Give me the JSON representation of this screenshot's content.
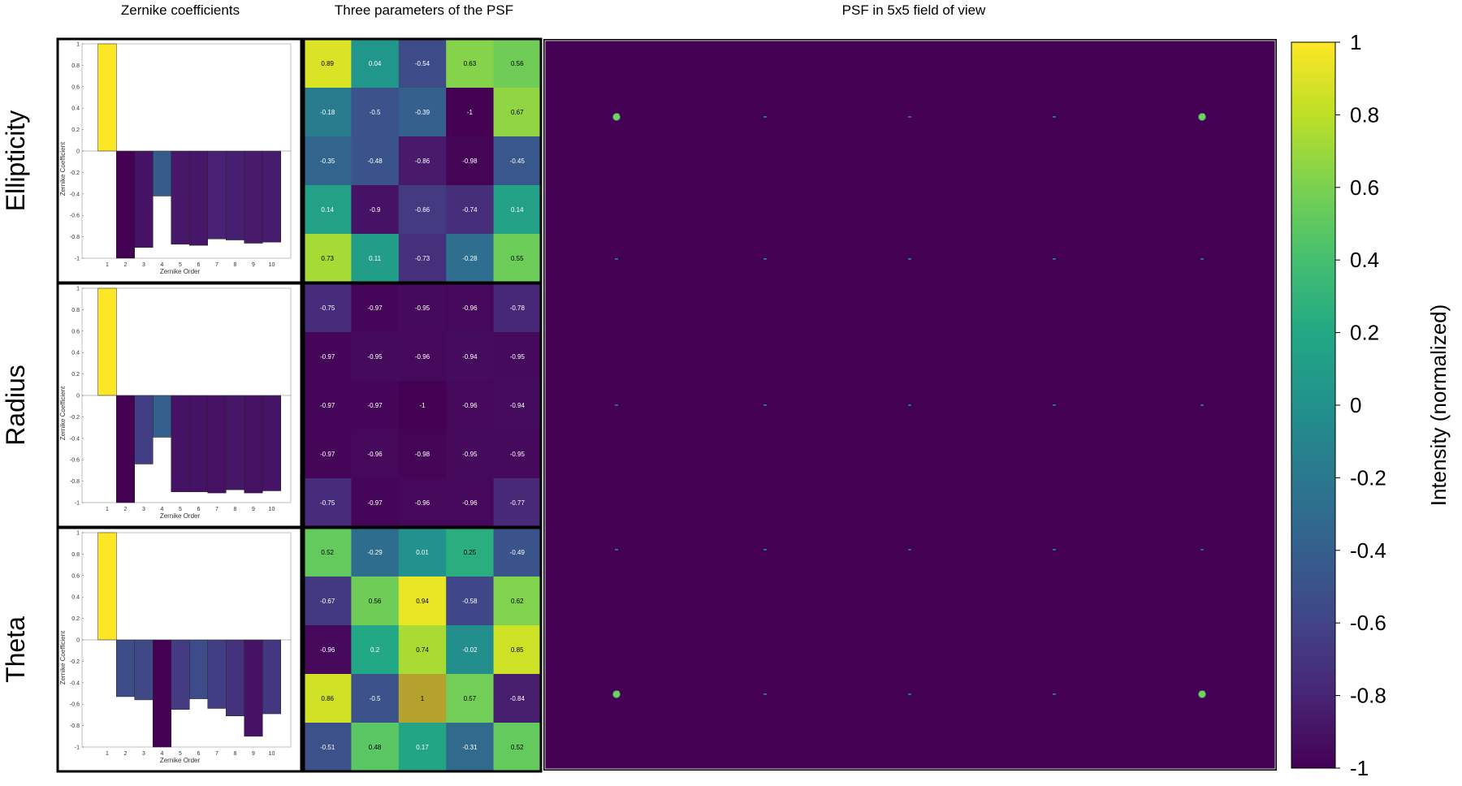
{
  "figure": {
    "column_titles": [
      "Zernike coefficients",
      "Three parameters of the PSF",
      "PSF in 5x5 field of view"
    ],
    "row_labels": [
      "Ellipticity",
      "Radius",
      "Theta"
    ],
    "colorbar": {
      "label": "Intensity (normalized)",
      "ticks": [
        "1",
        "0.8",
        "0.6",
        "0.4",
        "0.2",
        "0",
        "-0.2",
        "-0.4",
        "-0.6",
        "-0.8",
        "-1"
      ],
      "range": [
        -1,
        1
      ],
      "colormap": "viridis"
    }
  },
  "chart_data": [
    {
      "type": "bar",
      "panel": "Ellipticity",
      "xlabel": "Zernike Order",
      "ylabel": "Zernike Coefficient",
      "categories": [
        "1",
        "2",
        "3",
        "4",
        "5",
        "6",
        "7",
        "8",
        "9",
        "10"
      ],
      "values": [
        1.0,
        -1.0,
        -0.9,
        -0.42,
        -0.87,
        -0.88,
        -0.82,
        -0.83,
        -0.86,
        -0.85
      ],
      "ylim": [
        -1,
        1
      ],
      "yticks": [
        "-1",
        "-0.8",
        "-0.6",
        "-0.4",
        "-0.2",
        "0",
        "0.2",
        "0.4",
        "0.6",
        "0.8",
        "1"
      ]
    },
    {
      "type": "bar",
      "panel": "Radius",
      "xlabel": "Zernike Order",
      "ylabel": "Zernike Coefficient",
      "categories": [
        "1",
        "2",
        "3",
        "4",
        "5",
        "6",
        "7",
        "8",
        "9",
        "10"
      ],
      "values": [
        1.0,
        -1.0,
        -0.64,
        -0.39,
        -0.9,
        -0.9,
        -0.91,
        -0.88,
        -0.91,
        -0.89
      ],
      "ylim": [
        -1,
        1
      ],
      "yticks": [
        "-1",
        "-0.8",
        "-0.6",
        "-0.4",
        "-0.2",
        "0",
        "0.2",
        "0.4",
        "0.6",
        "0.8",
        "1"
      ]
    },
    {
      "type": "bar",
      "panel": "Theta",
      "xlabel": "Zernike Order",
      "ylabel": "Zernike Coefficient",
      "categories": [
        "1",
        "2",
        "3",
        "4",
        "5",
        "6",
        "7",
        "8",
        "9",
        "10"
      ],
      "values": [
        1.0,
        -0.53,
        -0.56,
        -1.0,
        -0.65,
        -0.55,
        -0.64,
        -0.71,
        -0.9,
        -0.69
      ],
      "ylim": [
        -1,
        1
      ],
      "yticks": [
        "-1",
        "-0.8",
        "-0.6",
        "-0.4",
        "-0.2",
        "0",
        "0.2",
        "0.4",
        "0.6",
        "0.8",
        "1"
      ]
    },
    {
      "type": "heatmap",
      "panel": "Ellipticity",
      "values": [
        [
          "0.89",
          "0.04",
          "-0.54",
          "0.63",
          "0.56"
        ],
        [
          "-0.18",
          "-0.5",
          "-0.39",
          "-1",
          "0.67"
        ],
        [
          "-0.35",
          "-0.48",
          "-0.86",
          "-0.98",
          "-0.45"
        ],
        [
          "0.14",
          "-0.9",
          "-0.66",
          "-0.74",
          "0.14"
        ],
        [
          "0.73",
          "0.11",
          "-0.73",
          "-0.28",
          "0.55"
        ]
      ]
    },
    {
      "type": "heatmap",
      "panel": "Radius",
      "values": [
        [
          "-0.75",
          "-0.97",
          "-0.95",
          "-0.96",
          "-0.78"
        ],
        [
          "-0.97",
          "-0.95",
          "-0.96",
          "-0.94",
          "-0.95"
        ],
        [
          "-0.97",
          "-0.97",
          "-1",
          "-0.96",
          "-0.94"
        ],
        [
          "-0.97",
          "-0.96",
          "-0.98",
          "-0.95",
          "-0.95"
        ],
        [
          "-0.75",
          "-0.97",
          "-0.96",
          "-0.96",
          "-0.77"
        ]
      ]
    },
    {
      "type": "heatmap",
      "panel": "Theta",
      "values": [
        [
          "0.52",
          "-0.29",
          "0.01",
          "0.25",
          "-0.49"
        ],
        [
          "-0.67",
          "0.56",
          "0.94",
          "-0.58",
          "0.62"
        ],
        [
          "-0.96",
          "0.2",
          "0.74",
          "-0.02",
          "0.85"
        ],
        [
          "0.86",
          "-0.5",
          "1",
          "0.57",
          "-0.84"
        ],
        [
          "-0.51",
          "0.48",
          "0.17",
          "-0.31",
          "0.52"
        ]
      ]
    },
    {
      "type": "heatmap",
      "panel": "PSF in 5x5 field of view",
      "grid": [
        5,
        5
      ],
      "background_value": -1,
      "psf_peak_intensity": [
        [
          0.6,
          0.0,
          0.0,
          0.0,
          0.6
        ],
        [
          0.0,
          0.0,
          0.0,
          0.0,
          0.0
        ],
        [
          0.0,
          0.0,
          0.0,
          0.0,
          0.0
        ],
        [
          0.0,
          0.0,
          0.0,
          0.0,
          0.0
        ],
        [
          0.6,
          0.0,
          0.0,
          0.0,
          0.6
        ]
      ]
    }
  ]
}
